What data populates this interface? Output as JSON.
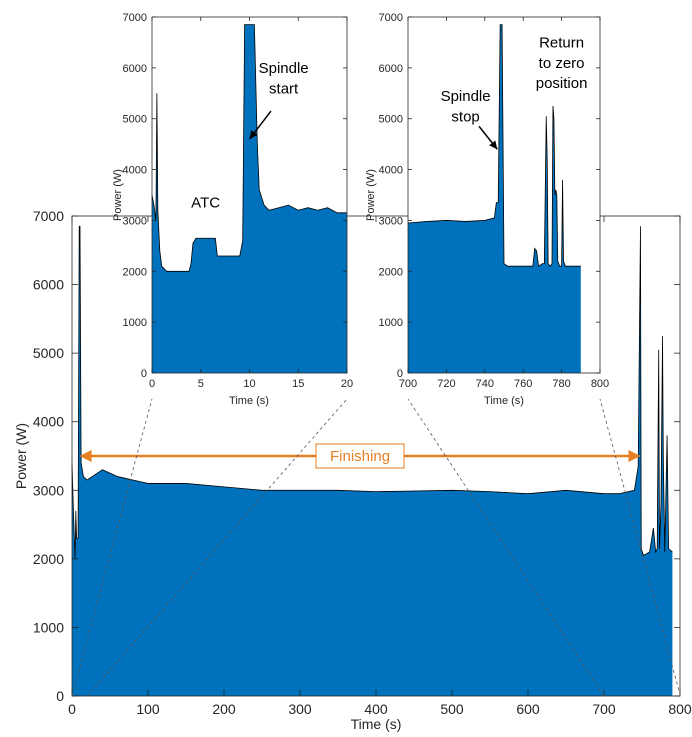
{
  "chart_data": [
    {
      "id": "main",
      "type": "area",
      "xlabel": "Time (s)",
      "ylabel": "Power (W)",
      "xlim": [
        0,
        800
      ],
      "ylim": [
        0,
        7000
      ],
      "xticks": [
        0,
        100,
        200,
        300,
        400,
        500,
        600,
        700,
        800
      ],
      "yticks": [
        0,
        1000,
        2000,
        3000,
        4000,
        5000,
        6000,
        7000
      ],
      "fill_color": "#0072bd",
      "line_color": "#000000",
      "series": [
        {
          "x": [
            0,
            2,
            4,
            5,
            6,
            8,
            9.5,
            10.5,
            12,
            15,
            20,
            40,
            60,
            80,
            100,
            150,
            200,
            250,
            300,
            350,
            400,
            450,
            500,
            550,
            600,
            650,
            700,
            720,
            740,
            745,
            748,
            749,
            752,
            760,
            765,
            768,
            770,
            772,
            773,
            775,
            777,
            778,
            780,
            783,
            785,
            790
          ],
          "y": [
            3400,
            2650,
            2000,
            2700,
            2300,
            2300,
            6850,
            6850,
            3400,
            3200,
            3150,
            3300,
            3200,
            3150,
            3100,
            3100,
            3050,
            3000,
            3000,
            3000,
            2980,
            2990,
            3000,
            2980,
            2950,
            3000,
            2950,
            2950,
            3000,
            3350,
            6850,
            2150,
            2050,
            2100,
            2450,
            2100,
            2150,
            5050,
            2150,
            2800,
            5250,
            3500,
            2100,
            3800,
            2150,
            2100
          ]
        }
      ],
      "annotations": [
        {
          "text": "Finishing",
          "x_start": 10,
          "x_end": 748,
          "y": 3500,
          "color": "#e67e22"
        }
      ]
    },
    {
      "id": "inset-start",
      "type": "area",
      "xlabel": "Time (s)",
      "ylabel": "Power (W)",
      "xlim": [
        0,
        20
      ],
      "ylim": [
        0,
        7000
      ],
      "xticks": [
        0,
        5,
        10,
        15,
        20
      ],
      "yticks": [
        0,
        1000,
        2000,
        3000,
        4000,
        5000,
        6000,
        7000
      ],
      "series": [
        {
          "x": [
            0,
            0.2,
            0.4,
            0.5,
            0.6,
            0.8,
            1.0,
            1.5,
            2.0,
            3.0,
            3.8,
            4.0,
            4.2,
            4.5,
            5.0,
            6.5,
            6.7,
            7.0,
            8.0,
            9.0,
            9.3,
            9.5,
            9.7,
            10.0,
            10.5,
            10.8,
            11.0,
            11.5,
            12.0,
            13.0,
            14.0,
            15.0,
            16.0,
            17.0,
            18.0,
            19.0,
            20.0
          ],
          "y": [
            3500,
            3300,
            3000,
            5500,
            3200,
            2400,
            2100,
            2000,
            2000,
            2000,
            2000,
            2150,
            2550,
            2650,
            2650,
            2650,
            2300,
            2300,
            2300,
            2300,
            2600,
            6850,
            6850,
            6850,
            6850,
            4500,
            3600,
            3300,
            3200,
            3250,
            3300,
            3200,
            3250,
            3200,
            3250,
            3150,
            3150
          ]
        }
      ],
      "annotations": [
        {
          "text": "ATC",
          "x": 5.5,
          "y": 3250
        },
        {
          "text": "Spindle",
          "x": 13.5,
          "y": 5900
        },
        {
          "text": "start",
          "x": 13.5,
          "y": 5500
        }
      ]
    },
    {
      "id": "inset-end",
      "type": "area",
      "xlabel": "Time (s)",
      "ylabel": "Power (W)",
      "xlim": [
        700,
        800
      ],
      "ylim": [
        0,
        7000
      ],
      "xticks": [
        700,
        720,
        740,
        760,
        780,
        800
      ],
      "yticks": [
        0,
        1000,
        2000,
        3000,
        4000,
        5000,
        6000,
        7000
      ],
      "series": [
        {
          "x": [
            700,
            710,
            720,
            730,
            740,
            745,
            746,
            747,
            748,
            749,
            750,
            752,
            755,
            760,
            765,
            766,
            767,
            768,
            770,
            771,
            772,
            772.5,
            773,
            774,
            775,
            775.5,
            776,
            776.5,
            777,
            777.5,
            778,
            779,
            780,
            780.5,
            781,
            781.5,
            782,
            784,
            786,
            790
          ],
          "y": [
            2950,
            2980,
            3000,
            2980,
            3000,
            3050,
            3350,
            3350,
            6850,
            6850,
            2150,
            2100,
            2100,
            2100,
            2100,
            2450,
            2400,
            2100,
            2150,
            2150,
            5050,
            4200,
            2150,
            2100,
            2150,
            5250,
            5000,
            3500,
            3600,
            3500,
            2200,
            2100,
            2100,
            3800,
            2200,
            2150,
            2100,
            2100,
            2100,
            2100
          ]
        }
      ],
      "annotations": [
        {
          "text": "Spindle",
          "x": 730,
          "y": 5350
        },
        {
          "text": "stop",
          "x": 730,
          "y": 4950
        },
        {
          "text": "Return",
          "x": 780,
          "y": 6400
        },
        {
          "text": "to zero",
          "x": 780,
          "y": 6000
        },
        {
          "text": "position",
          "x": 780,
          "y": 5600
        }
      ]
    }
  ]
}
